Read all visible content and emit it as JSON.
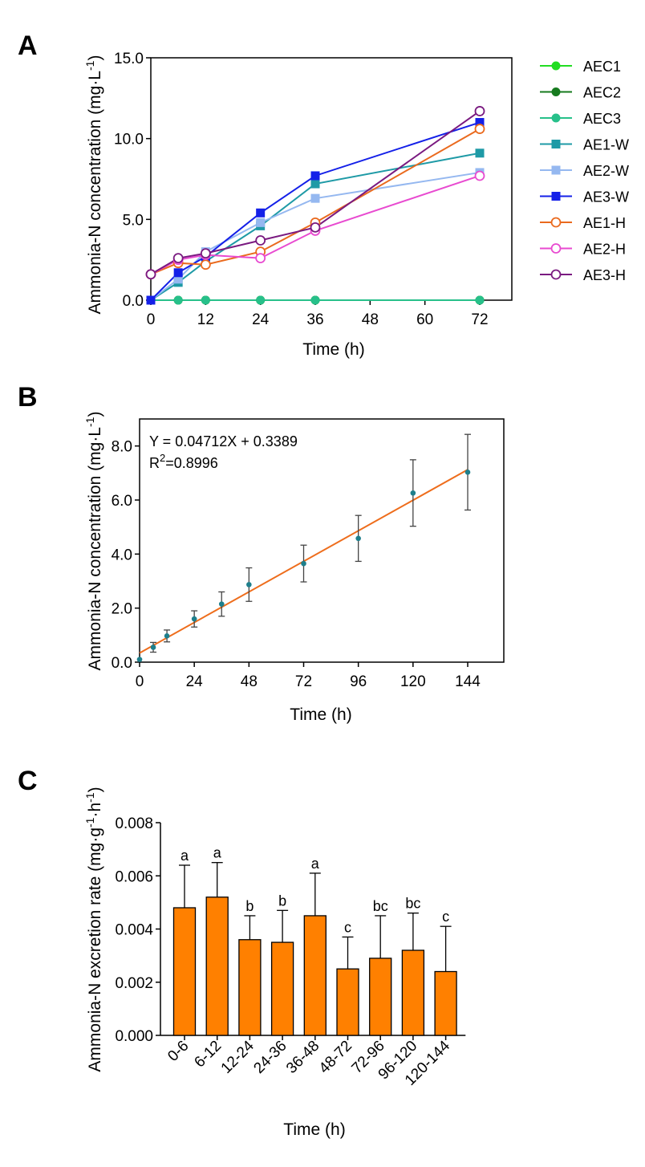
{
  "chart_data": [
    {
      "panel": "A",
      "type": "line",
      "xlabel": "Time (h)",
      "ylabel": "Ammonia-N concentration (mg·L-1)",
      "ylabel_main": "Ammonia-N concentration (mg·L",
      "ylabel_sup": "-1",
      "ylabel_close": ")",
      "xlim": [
        0,
        72
      ],
      "ylim": [
        0,
        15
      ],
      "x_ticks": [
        0,
        12,
        24,
        36,
        48,
        60,
        72
      ],
      "y_ticks": [
        "0.0",
        "5.0",
        "10.0",
        "15.0"
      ],
      "legend_position": "right",
      "x": [
        0,
        6,
        12,
        24,
        36,
        72
      ],
      "series": [
        {
          "name": "AEC1",
          "color": "#22dd22",
          "marker": "circle-filled",
          "values": [
            0,
            0,
            0,
            0,
            0,
            0
          ]
        },
        {
          "name": "AEC2",
          "color": "#167a1e",
          "marker": "circle-filled",
          "values": [
            0,
            0,
            0,
            0,
            0,
            0
          ]
        },
        {
          "name": "AEC3",
          "color": "#27c08a",
          "marker": "circle-filled",
          "values": [
            0,
            0,
            0,
            0,
            0,
            0
          ]
        },
        {
          "name": "AE1-W",
          "color": "#1e9aa6",
          "marker": "square-filled",
          "values": [
            0,
            1.1,
            2.4,
            4.6,
            7.2,
            9.1
          ]
        },
        {
          "name": "AE2-W",
          "color": "#95b8f0",
          "marker": "square-filled",
          "values": [
            0,
            1.3,
            3.0,
            4.8,
            6.3,
            7.9
          ]
        },
        {
          "name": "AE3-W",
          "color": "#1420e8",
          "marker": "square-filled",
          "values": [
            0,
            1.7,
            2.7,
            5.4,
            7.7,
            11.0
          ]
        },
        {
          "name": "AE1-H",
          "color": "#ea6a1e",
          "marker": "circle-open",
          "values": [
            1.6,
            2.3,
            2.2,
            3.0,
            4.8,
            10.6
          ]
        },
        {
          "name": "AE2-H",
          "color": "#e84ad0",
          "marker": "circle-open",
          "values": [
            1.6,
            2.5,
            2.8,
            2.6,
            4.3,
            7.7
          ]
        },
        {
          "name": "AE3-H",
          "color": "#7a1a80",
          "marker": "circle-open",
          "values": [
            1.6,
            2.6,
            2.9,
            3.7,
            4.5,
            11.7
          ]
        }
      ]
    },
    {
      "panel": "B",
      "type": "scatter",
      "xlabel": "Time (h)",
      "ylabel": "Ammonia-N concentration (mg·L-1)",
      "ylabel_main": "Ammonia-N concentration (mg·L",
      "ylabel_sup": "-1",
      "ylabel_close": ")",
      "xlim": [
        0,
        156
      ],
      "ylim": [
        0,
        9.0
      ],
      "x_ticks": [
        0,
        24,
        48,
        72,
        96,
        120,
        144
      ],
      "y_ticks": [
        "0.0",
        "2.0",
        "4.0",
        "6.0",
        "8.0"
      ],
      "equation": "Y = 0.04712X + 0.3389",
      "r2_prefix": "R",
      "r2_sup": "2",
      "r2_value": "=0.8996",
      "fit": {
        "slope": 0.04712,
        "intercept": 0.3389,
        "color": "#ee6d1c"
      },
      "point_color": "#1e7f8c",
      "x": [
        0,
        6,
        12,
        24,
        36,
        48,
        72,
        96,
        120,
        144
      ],
      "values": [
        0.1,
        0.55,
        0.97,
        1.6,
        2.15,
        2.87,
        3.65,
        4.58,
        6.26,
        7.03
      ],
      "errors": [
        0.0,
        0.18,
        0.22,
        0.3,
        0.45,
        0.62,
        0.68,
        0.85,
        1.23,
        1.4
      ]
    },
    {
      "panel": "C",
      "type": "bar",
      "xlabel": "Time (h)",
      "ylabel": "Ammonia-N excretion rate (mg·g-1·h-1)",
      "ylabel_main": "Ammonia-N excretion rate (mg·g",
      "ylabel_sup1": "-1",
      "ylabel_mid": "·h",
      "ylabel_sup2": "-1",
      "ylabel_close": ")",
      "ylim": [
        0,
        0.008
      ],
      "y_ticks": [
        "0.000",
        "0.002",
        "0.004",
        "0.006",
        "0.008"
      ],
      "bar_color": "#ff8000",
      "categories": [
        "0-6",
        "6-12",
        "12-24",
        "24-36",
        "36-48",
        "48-72",
        "72-96",
        "96-120",
        "120-144"
      ],
      "values": [
        0.0048,
        0.0052,
        0.0036,
        0.0035,
        0.0045,
        0.0025,
        0.0029,
        0.0032,
        0.0024
      ],
      "errors": [
        0.0016,
        0.0013,
        0.0009,
        0.0012,
        0.0016,
        0.0012,
        0.0016,
        0.0014,
        0.0017
      ],
      "letters": [
        "a",
        "a",
        "b",
        "b",
        "a",
        "c",
        "bc",
        "bc",
        "c"
      ]
    }
  ],
  "panel_labels": [
    "A",
    "B",
    "C"
  ]
}
